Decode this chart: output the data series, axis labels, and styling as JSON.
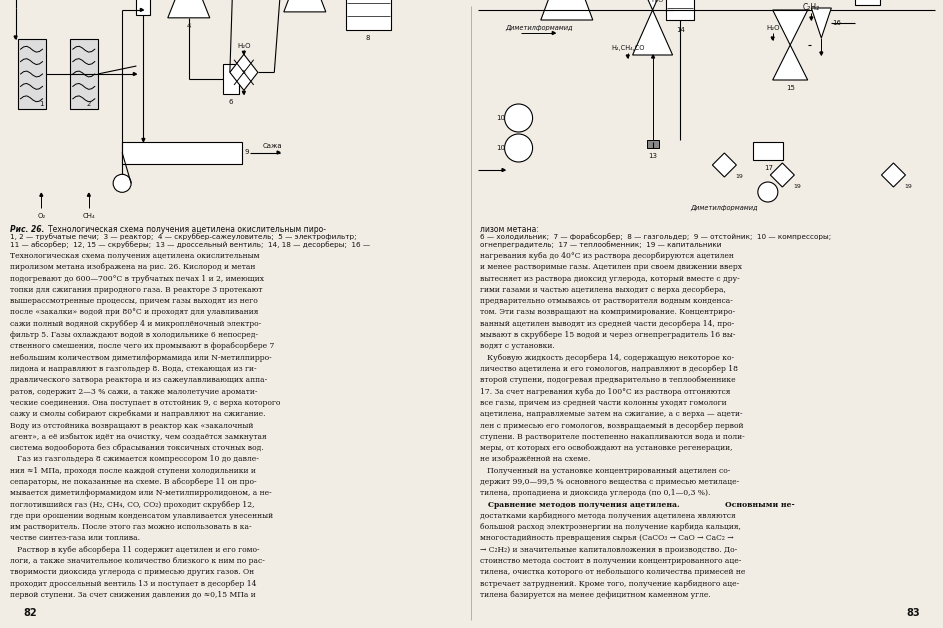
{
  "page_bg": "#f2ede4",
  "text_color": "#111111",
  "page_width": 9.43,
  "page_height": 6.28,
  "left_page_num": "82",
  "right_page_num": "83",
  "left_text": [
    "Технологическая схема получения ацетилена окислительным",
    "пиролизом метана изображена на рис. 26. Кислород и метан",
    "подогревают до 600—700°С в трубчатых печах 1 и 2, имеющих",
    "топки для сжигания природного газа. В реакторе 3 протекают",
    "вышерассмотренные процессы, причем газы выходят из него",
    "после «закалки» водой при 80°С и проходят для улавливания",
    "сажи полный водяной скруббер 4 и микроплёночный электро-",
    "фильтр 5. Газы охлаждают водой в холодильнике 6 непосред-",
    "ственного смешения, после чего их промывают в форабсорбере 7",
    "небольшим количеством диметилформамида или N-метилпирро-",
    "лидона и направляют в газгольдер 8. Вода, стекающая из ги-",
    "дравлического затвора реактора и из сажеулавливающих аппа-",
    "ратов, содержит 2—3 % сажи, а также малолетучие аромати-",
    "ческие соединения. Она поступает в отстойник 9, с верха которого",
    "сажу и смолы собирают скребками и направляют на сжигание.",
    "Воду из отстойника возвращают в реактор как «закалочный",
    "агент», а её избыток идёт на очистку, чем создаётся замкнутая",
    "система водооборота без сбрасывания токсичных сточных вод.",
    "   Газ из газгольдера 8 сжимается компрессором 10 до давле-",
    "ния ≈1 МПа, проходя после каждой ступени холодильники и",
    "сепараторы, не показанные на схеме. В абсорбере 11 он про-",
    "мывается диметилформамидом или N-метилпирролидоном, а не-",
    "поглотившийся газ (H₂, CH₄, CO, CO₂) проходит скруббер 12,",
    "где при орошении водным конденсатом улавливается унесенный",
    "им растворитель. После этого газ можно использовать в ка-",
    "честве синтез-газа или топлива.",
    "   Раствор в кубе абсорбера 11 содержит ацетилен и его гомо-",
    "логи, а также значительное количество близкого к ним по рас-",
    "творимости диоксида углерода с примесью других газов. Он",
    "проходит дроссельный вентиль 13 и поступает в десорбер 14",
    "первой ступени. За счет снижения давления до ≈0,15 МПа и"
  ],
  "right_text": [
    "нагревания куба до 40°С из раствора десорбируются ацетилен",
    "и менее растворимые газы. Ацетилен при своем движении вверх",
    "вытесняет из раствора диоксид углерода, который вместе с дру-",
    "гими газами и частью ацетилена выходит с верха десорбера,",
    "предварительно отмываясь от растворителя водным конденса-",
    "том. Эти газы возвращают на компримирование. Концентриро-",
    "ванный ацетилен выводят из средней части десорбера 14, про-",
    "мывают в скруббере 15 водой и через огнепреградитель 16 вы-",
    "водят с установки.",
    "   Кубовую жидкость десорбера 14, содержащую некоторое ко-",
    "личество ацетилена и его гомологов, направляют в десорбер 18",
    "второй ступени, подогревая предварительно в теплообменнике",
    "17. За счет нагревания куба до 100°С из раствора отгоняются",
    "все газы, причем из средней части колонны уходят гомологи",
    "ацетилена, направляемые затем на сжигание, а с верха — ацети-",
    "лен с примесью его гомологов, возвращаемый в десорбер первой",
    "ступени. В растворителе постепенно накапливаются вода и поли-",
    "меры, от которых его освобождают на установке регенерации,",
    "не изображённой на схеме.",
    "   Полученный на установке концентрированный ацетилен со-",
    "держит 99,0—99,5 % основного вещества с примесью метилаце-",
    "тилена, пропадиена и диоксида углерода (по 0,1—0,3 %).",
    "   Сравнение методов получения ацетилена. Основными не-",
    "достатками карбидного метода получения ацетилена являются",
    "большой расход электроэнергии на получение карбида кальция,",
    "многостадийность превращения сырья (CaCO₃ → CaO → CaC₂ →",
    "→ C₂H₂) и значительные капиталовложения в производство. До-",
    "стоинство метода состоит в получении концентрированного аце-",
    "тилена, очистка которого от небольшого количества примесей не",
    "встречает затруднений. Кроме того, получение карбидного аце-",
    "тилена базируется на менее дефицитном каменном угле."
  ]
}
